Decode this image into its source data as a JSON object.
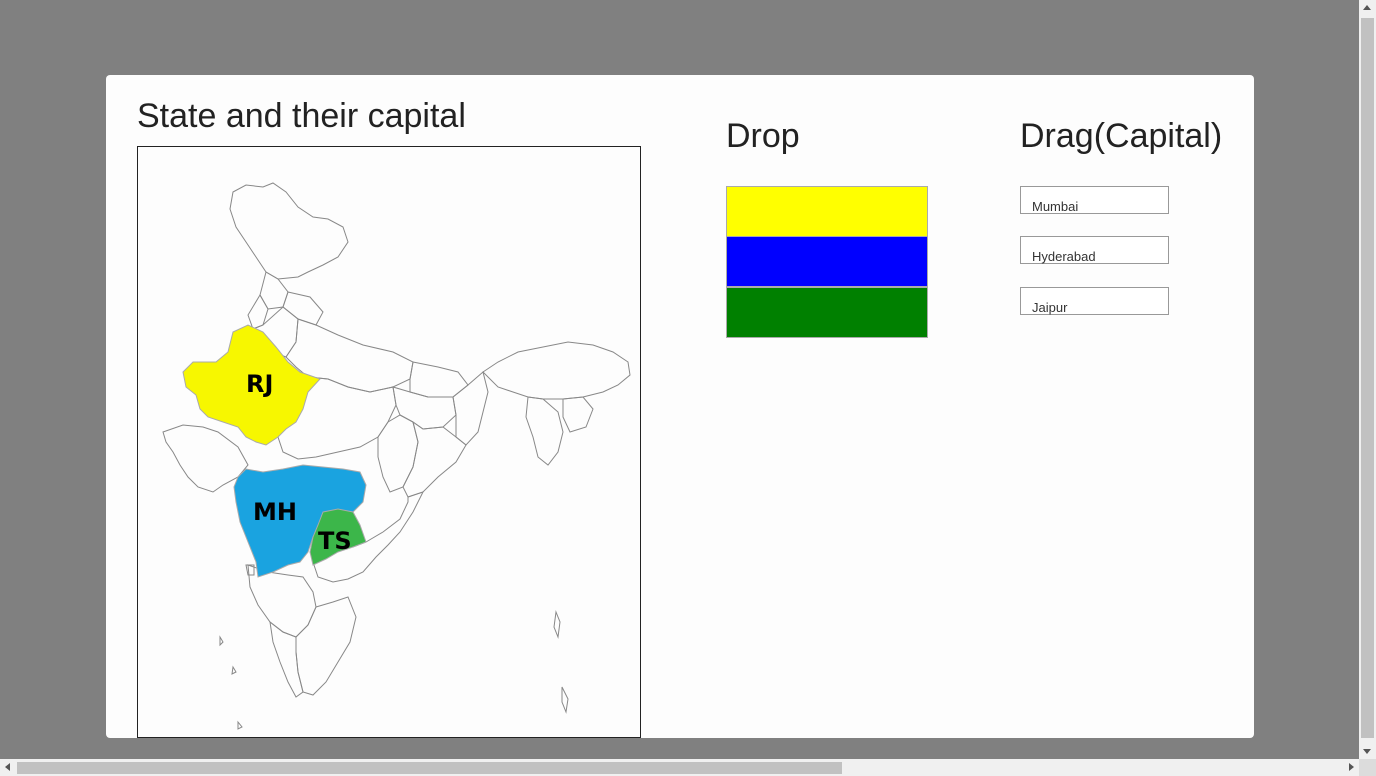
{
  "page": {
    "title": "State and their capital"
  },
  "map": {
    "states": [
      {
        "code": "RJ",
        "color": "#f7f700"
      },
      {
        "code": "MH",
        "color": "#1aa3e0"
      },
      {
        "code": "TS",
        "color": "#3cb64a"
      }
    ]
  },
  "drop": {
    "heading": "Drop",
    "zones": [
      {
        "color": "#ffff00"
      },
      {
        "color": "#0000ff"
      },
      {
        "color": "#008000"
      }
    ]
  },
  "drag": {
    "heading": "Drag(Capital)",
    "items": [
      {
        "label": "Mumbai"
      },
      {
        "label": "Hyderabad"
      },
      {
        "label": "Jaipur"
      }
    ]
  },
  "colors": {
    "backdrop": "#808080",
    "card": "#fdfdfd"
  }
}
